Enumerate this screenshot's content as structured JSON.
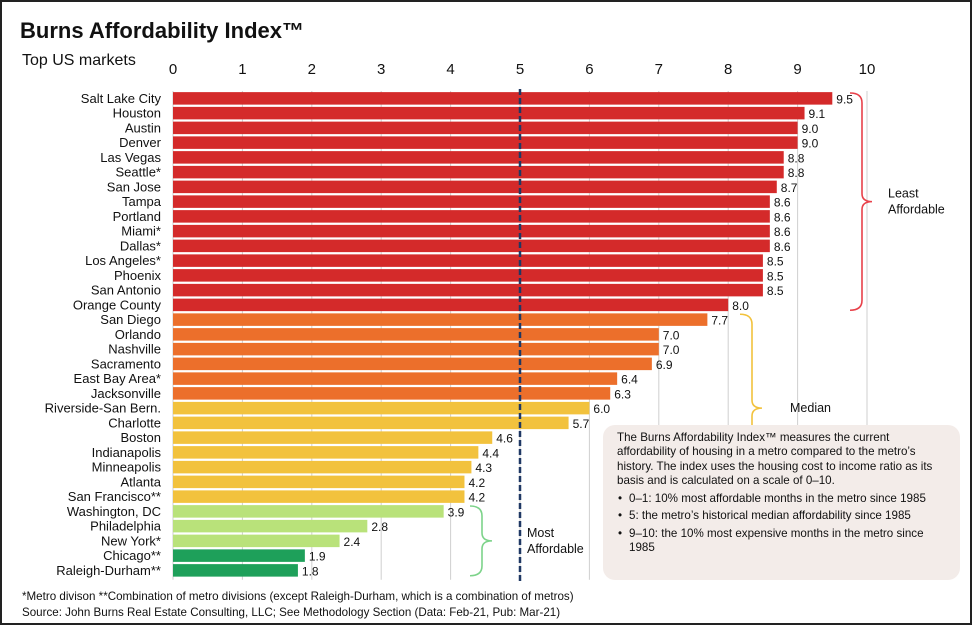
{
  "title": "Burns Affordability Index™",
  "subtitle": "Top US markets",
  "chart_data": {
    "type": "bar",
    "orientation": "horizontal",
    "xlim": [
      0,
      10
    ],
    "x_ticks": [
      "0",
      "1",
      "2",
      "3",
      "4",
      "5",
      "6",
      "7",
      "8",
      "9",
      "10"
    ],
    "x_gridlines": true,
    "median_line": 5,
    "categories": [
      "Salt Lake City",
      "Houston",
      "Austin",
      "Denver",
      "Las Vegas",
      "Seattle*",
      "San Jose",
      "Tampa",
      "Portland",
      "Miami*",
      "Dallas*",
      "Los Angeles*",
      "Phoenix",
      "San Antonio",
      "Orange County",
      "San Diego",
      "Orlando",
      "Nashville",
      "Sacramento",
      "East Bay Area*",
      "Jacksonville",
      "Riverside-San Bern.",
      "Charlotte",
      "Boston",
      "Indianapolis",
      "Minneapolis",
      "Atlanta",
      "San Francisco**",
      "Washington, DC",
      "Philadelphia",
      "New York*",
      "Chicago**",
      "Raleigh-Durham**"
    ],
    "values": [
      9.5,
      9.1,
      9.0,
      9.0,
      8.8,
      8.8,
      8.7,
      8.6,
      8.6,
      8.6,
      8.6,
      8.5,
      8.5,
      8.5,
      8.0,
      7.7,
      7.0,
      7.0,
      6.9,
      6.4,
      6.3,
      6.0,
      5.7,
      4.6,
      4.4,
      4.3,
      4.2,
      4.2,
      3.9,
      2.8,
      2.4,
      1.9,
      1.8
    ],
    "value_labels": [
      "9.5",
      "9.1",
      "9.0",
      "9.0",
      "8.8",
      "8.8",
      "8.7",
      "8.6",
      "8.6",
      "8.6",
      "8.6",
      "8.5",
      "8.5",
      "8.5",
      "8.0",
      "7.7",
      "7.0",
      "7.0",
      "6.9",
      "6.4",
      "6.3",
      "6.0",
      "5.7",
      "4.6",
      "4.4",
      "4.3",
      "4.2",
      "4.2",
      "3.9",
      "2.8",
      "2.4",
      "1.9",
      "1.8"
    ],
    "bar_colors": [
      "#d42a2a",
      "#d42a2a",
      "#d42a2a",
      "#d42a2a",
      "#d42a2a",
      "#d42a2a",
      "#d42a2a",
      "#d42a2a",
      "#d42a2a",
      "#d42a2a",
      "#d42a2a",
      "#d42a2a",
      "#d42a2a",
      "#d42a2a",
      "#d42a2a",
      "#ec6f2b",
      "#ec6f2b",
      "#ec6f2b",
      "#ec6f2b",
      "#ec6f2b",
      "#ec6f2b",
      "#f2c23d",
      "#f2c23d",
      "#f2c23d",
      "#f2c23d",
      "#f2c23d",
      "#f2c23d",
      "#f2c23d",
      "#b9e27a",
      "#b9e27a",
      "#b9e27a",
      "#1ea05a",
      "#1ea05a"
    ],
    "group_labels": [
      {
        "text_lines": [
          "Least",
          "Affordable"
        ],
        "color": "#e8414a",
        "from": 0,
        "to": 14
      },
      {
        "text_lines": [
          "Median"
        ],
        "color": "#f2c23d",
        "from": 15,
        "to": 27
      },
      {
        "text_lines": [
          "Most",
          "Affordable"
        ],
        "color": "#7dd38a",
        "from": 28,
        "to": 32
      }
    ]
  },
  "note": {
    "intro": "The Burns Affordability Index™ measures the current affordability of housing in a metro compared to the metro’s history. The index uses the housing cost to income ratio as its basis and is calculated on a scale of 0–10.",
    "bullets": [
      "0–1: 10% most affordable months in the metro since 1985",
      "5: the metro’s historical median affordability since 1985",
      "9–10: the 10% most expensive months in the metro since 1985"
    ]
  },
  "footnote": "*Metro divison  **Combination of metro divisions  (except Raleigh-Durham,  which is a combination of metros)",
  "source": "Source: John Burns Real Estate Consulting, LLC; See Methodology Section (Data: Feb-21, Pub: Mar-21)"
}
